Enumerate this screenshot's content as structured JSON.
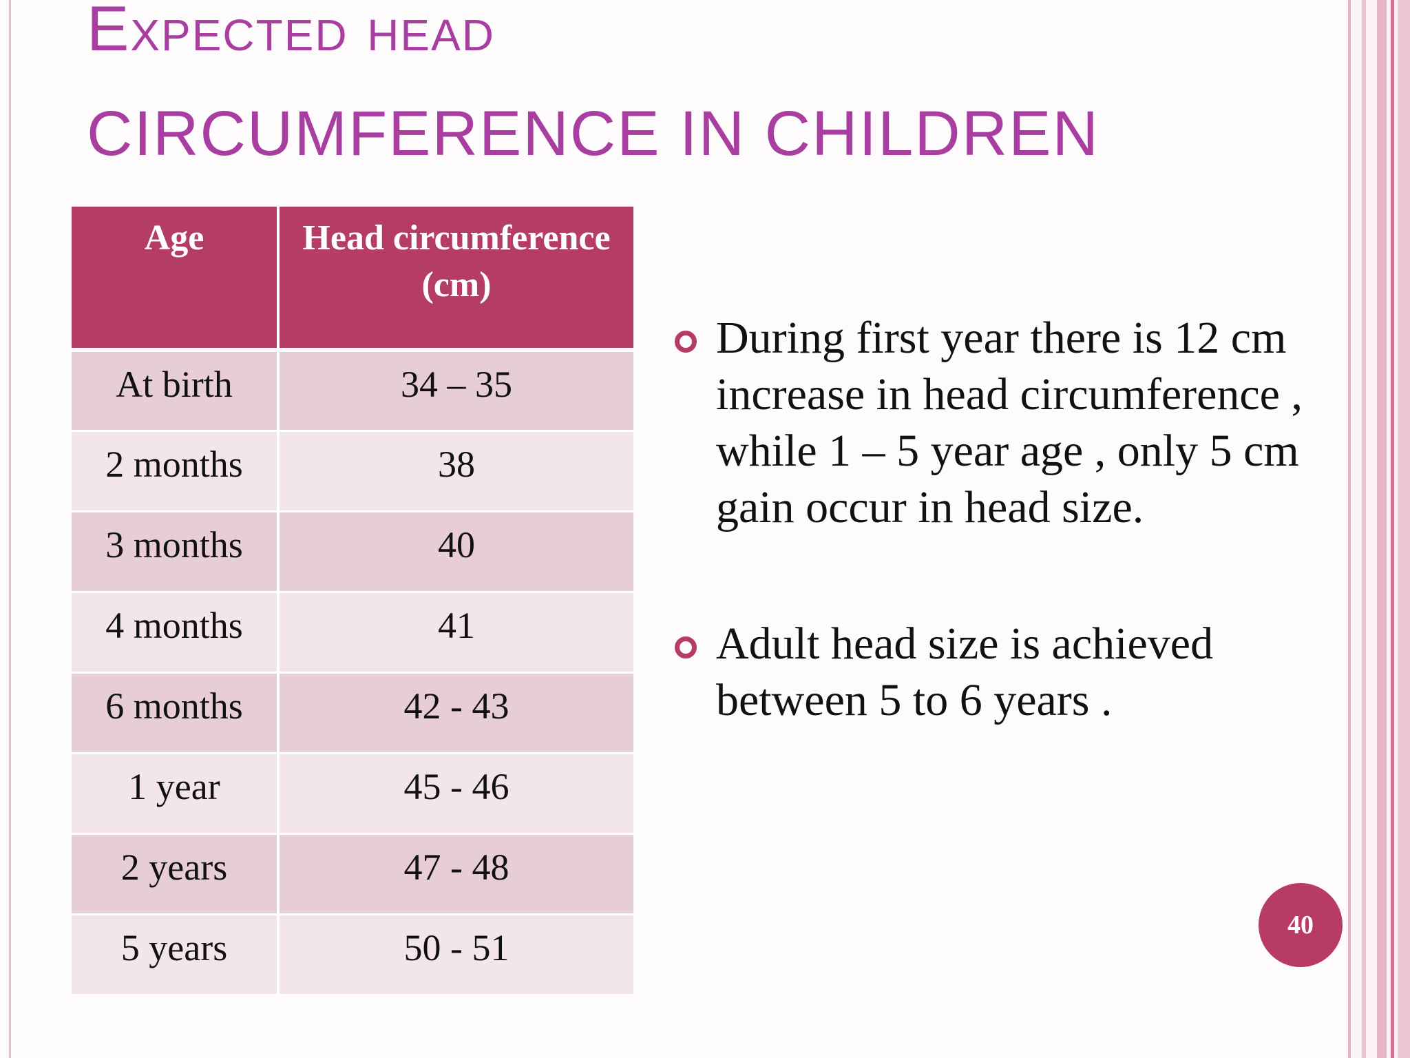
{
  "slide": {
    "title_line1": "Expected head",
    "title_line2": "circumference in children",
    "page_number": "40"
  },
  "table": {
    "headers": [
      "Age",
      "Head circumference (cm)"
    ],
    "rows": [
      [
        "At birth",
        "34 – 35"
      ],
      [
        "2 months",
        "38"
      ],
      [
        "3 months",
        "40"
      ],
      [
        "4 months",
        "41"
      ],
      [
        "6 months",
        "42 - 43"
      ],
      [
        "1 year",
        "45 - 46"
      ],
      [
        "2 years",
        "47 - 48"
      ],
      [
        "5 years",
        "50 - 51"
      ]
    ]
  },
  "bullets": [
    "During first year there is 12 cm increase in head circumference , while 1 – 5 year age , only 5 cm gain occur in head size.",
    "Adult head size is achieved between 5 to 6 years ."
  ],
  "colors": {
    "title": "#a93ea1",
    "table_header": "#b53c66",
    "row_odd": "#e7cdd6",
    "row_even": "#f3e6eb",
    "accent": "#b83a66"
  }
}
